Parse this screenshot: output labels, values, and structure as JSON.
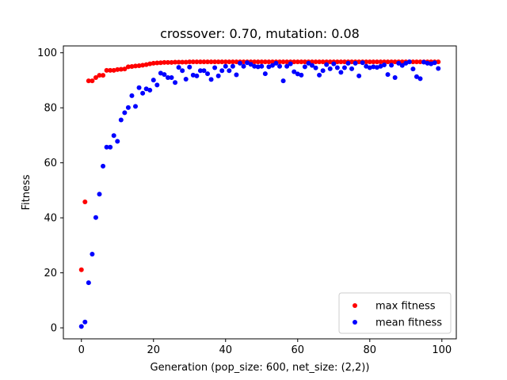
{
  "chart_data": {
    "type": "scatter",
    "title": "crossover: 0.70, mutation: 0.08",
    "xlabel": "Generation (pop_size: 600, net_size: (2,2))",
    "ylabel": "Fitness",
    "xlim": [
      -5,
      104
    ],
    "ylim": [
      -4,
      102.5
    ],
    "xticks": [
      0,
      20,
      40,
      60,
      80,
      100
    ],
    "yticks": [
      0,
      20,
      40,
      60,
      80,
      100
    ],
    "grid": false,
    "legend_position": "bottom-right",
    "series": [
      {
        "name": "max fitness",
        "color": "#ff0000",
        "x": [
          0,
          1,
          2,
          3,
          4,
          5,
          6,
          7,
          8,
          9,
          10,
          11,
          12,
          13,
          14,
          15,
          16,
          17,
          18,
          19,
          20,
          21,
          22,
          23,
          24,
          25,
          26,
          27,
          28,
          29,
          30,
          31,
          32,
          33,
          34,
          35,
          36,
          37,
          38,
          39,
          40,
          41,
          42,
          43,
          44,
          45,
          46,
          47,
          48,
          49,
          50,
          51,
          52,
          53,
          54,
          55,
          56,
          57,
          58,
          59,
          60,
          61,
          62,
          63,
          64,
          65,
          66,
          67,
          68,
          69,
          70,
          71,
          72,
          73,
          74,
          75,
          76,
          77,
          78,
          79,
          80,
          81,
          82,
          83,
          84,
          85,
          86,
          87,
          88,
          89,
          90,
          91,
          92,
          93,
          94,
          95,
          96,
          97,
          98,
          99
        ],
        "y": [
          21.1,
          45.8,
          89.8,
          89.8,
          91.0,
          91.8,
          91.8,
          93.6,
          93.6,
          93.6,
          93.9,
          94.0,
          94.1,
          94.9,
          95.0,
          95.2,
          95.3,
          95.5,
          95.7,
          96.0,
          96.2,
          96.3,
          96.4,
          96.5,
          96.5,
          96.5,
          96.6,
          96.6,
          96.6,
          96.6,
          96.7,
          96.7,
          96.7,
          96.7,
          96.7,
          96.7,
          96.7,
          96.7,
          96.7,
          96.7,
          96.7,
          96.7,
          96.7,
          96.7,
          96.7,
          96.7,
          96.7,
          96.7,
          96.7,
          96.7,
          96.7,
          96.7,
          96.7,
          96.7,
          96.7,
          96.7,
          96.7,
          96.7,
          96.7,
          96.7,
          96.7,
          96.7,
          96.7,
          96.7,
          96.7,
          96.7,
          96.7,
          96.7,
          96.7,
          96.7,
          96.7,
          96.7,
          96.7,
          96.7,
          96.7,
          96.7,
          96.7,
          96.7,
          96.7,
          96.7,
          96.7,
          96.7,
          96.7,
          96.7,
          96.7,
          96.7,
          96.7,
          96.7,
          96.7,
          96.7,
          96.7,
          96.7,
          96.7,
          96.7,
          96.7,
          96.7,
          96.7,
          96.7,
          96.7,
          96.7
        ]
      },
      {
        "name": "mean fitness",
        "color": "#0000ff",
        "x": [
          0,
          1,
          2,
          3,
          4,
          5,
          6,
          7,
          8,
          9,
          10,
          11,
          12,
          13,
          14,
          15,
          16,
          17,
          18,
          19,
          20,
          21,
          22,
          23,
          24,
          25,
          26,
          27,
          28,
          29,
          30,
          31,
          32,
          33,
          34,
          35,
          36,
          37,
          38,
          39,
          40,
          41,
          42,
          43,
          44,
          45,
          46,
          47,
          48,
          49,
          50,
          51,
          52,
          53,
          54,
          55,
          56,
          57,
          58,
          59,
          60,
          61,
          62,
          63,
          64,
          65,
          66,
          67,
          68,
          69,
          70,
          71,
          72,
          73,
          74,
          75,
          76,
          77,
          78,
          79,
          80,
          81,
          82,
          83,
          84,
          85,
          86,
          87,
          88,
          89,
          90,
          91,
          92,
          93,
          94,
          95,
          96,
          97,
          98,
          99
        ],
        "y": [
          0.5,
          2.1,
          16.4,
          26.8,
          40.1,
          48.6,
          58.8,
          65.7,
          65.7,
          69.9,
          67.8,
          75.6,
          78.2,
          80.1,
          84.4,
          80.5,
          87.3,
          85.3,
          86.9,
          86.4,
          90.1,
          88.3,
          92.6,
          92.1,
          91.0,
          91.0,
          89.2,
          94.7,
          93.5,
          90.4,
          94.8,
          91.9,
          91.6,
          93.5,
          93.5,
          92.4,
          90.3,
          94.6,
          91.6,
          93.5,
          95.1,
          93.5,
          95.1,
          92.0,
          96.2,
          95.1,
          96.4,
          95.8,
          95.1,
          94.9,
          95.1,
          92.4,
          94.9,
          95.4,
          96.2,
          95.1,
          89.8,
          95.1,
          96.0,
          93.1,
          92.3,
          91.9,
          94.9,
          96.2,
          95.4,
          94.5,
          91.9,
          93.5,
          95.7,
          94.2,
          96.0,
          94.6,
          92.9,
          94.6,
          96.2,
          94.2,
          96.2,
          91.6,
          96.4,
          95.1,
          94.6,
          94.9,
          94.7,
          95.1,
          95.6,
          92.1,
          95.5,
          91.0,
          96.2,
          95.4,
          96.2,
          96.7,
          94.1,
          91.3,
          90.6,
          96.6,
          96.2,
          96.0,
          96.4,
          94.3
        ]
      }
    ]
  }
}
